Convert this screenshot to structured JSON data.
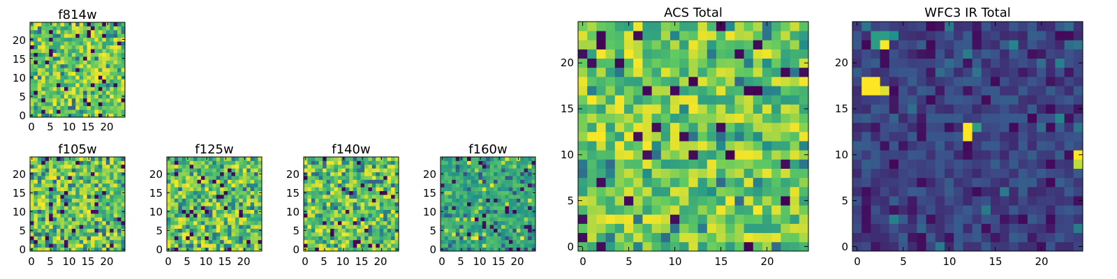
{
  "colormap": [
    "#440154",
    "#3b528b",
    "#21918c",
    "#5ec962",
    "#fde725"
  ],
  "chart_data": [
    {
      "type": "heatmap",
      "title": "f814w",
      "grid": [
        25,
        25
      ],
      "xticks": [
        "0",
        "5",
        "10",
        "15",
        "20"
      ],
      "yticks": [
        "0",
        "5",
        "10",
        "15",
        "20"
      ],
      "xlim": [
        -0.5,
        24.5
      ],
      "ylim": [
        -0.5,
        24.5
      ],
      "value_profile": "f814w",
      "seed": 11
    },
    {
      "type": "heatmap",
      "title": "f105w",
      "grid": [
        25,
        25
      ],
      "xticks": [
        "0",
        "5",
        "10",
        "15",
        "20"
      ],
      "yticks": [
        "0",
        "5",
        "10",
        "15",
        "20"
      ],
      "xlim": [
        -0.5,
        24.5
      ],
      "ylim": [
        -0.5,
        24.5
      ],
      "value_profile": "high",
      "seed": 23
    },
    {
      "type": "heatmap",
      "title": "f125w",
      "grid": [
        25,
        25
      ],
      "xticks": [
        "0",
        "5",
        "10",
        "15",
        "20"
      ],
      "yticks": [
        "0",
        "5",
        "10",
        "15",
        "20"
      ],
      "xlim": [
        -0.5,
        24.5
      ],
      "ylim": [
        -0.5,
        24.5
      ],
      "value_profile": "high",
      "seed": 37
    },
    {
      "type": "heatmap",
      "title": "f140w",
      "grid": [
        25,
        25
      ],
      "xticks": [
        "0",
        "5",
        "10",
        "15",
        "20"
      ],
      "yticks": [
        "0",
        "5",
        "10",
        "15",
        "20"
      ],
      "xlim": [
        -0.5,
        24.5
      ],
      "ylim": [
        -0.5,
        24.5
      ],
      "value_profile": "high",
      "seed": 41
    },
    {
      "type": "heatmap",
      "title": "f160w",
      "grid": [
        25,
        25
      ],
      "xticks": [
        "0",
        "5",
        "10",
        "15",
        "20"
      ],
      "yticks": [
        "0",
        "5",
        "10",
        "15",
        "20"
      ],
      "xlim": [
        -0.5,
        24.5
      ],
      "ylim": [
        -0.5,
        24.5
      ],
      "value_profile": "mid",
      "seed": 53
    },
    {
      "type": "heatmap",
      "title": "ACS Total",
      "grid": [
        25,
        25
      ],
      "xticks": [
        "0",
        "5",
        "10",
        "15",
        "20"
      ],
      "yticks": [
        "0",
        "5",
        "10",
        "15",
        "20"
      ],
      "xlim": [
        -0.5,
        24.5
      ],
      "ylim": [
        -0.5,
        24.5
      ],
      "value_profile": "acs",
      "seed": 67
    },
    {
      "type": "heatmap",
      "title": "WFC3 IR Total",
      "grid": [
        25,
        25
      ],
      "xticks": [
        "0",
        "5",
        "10",
        "15",
        "20"
      ],
      "yticks": [
        "0",
        "5",
        "10",
        "15",
        "20"
      ],
      "xlim": [
        -0.5,
        24.5
      ],
      "ylim": [
        -0.5,
        24.5
      ],
      "value_profile": "low",
      "hotspots": [
        {
          "x": 1,
          "y": 18,
          "v": 1.0
        },
        {
          "x": 2,
          "y": 18,
          "v": 1.0
        },
        {
          "x": 1,
          "y": 17,
          "v": 1.0
        },
        {
          "x": 2,
          "y": 17,
          "v": 1.0
        },
        {
          "x": 3,
          "y": 17,
          "v": 0.95
        },
        {
          "x": 3,
          "y": 22,
          "v": 1.0
        },
        {
          "x": 2,
          "y": 23,
          "v": 0.55
        },
        {
          "x": 3,
          "y": 23,
          "v": 0.55
        },
        {
          "x": 2,
          "y": 22,
          "v": 0.55
        },
        {
          "x": 4,
          "y": 23,
          "v": 0.5
        },
        {
          "x": 12,
          "y": 13,
          "v": 1.0
        },
        {
          "x": 12,
          "y": 12,
          "v": 1.0
        },
        {
          "x": 13,
          "y": 13,
          "v": 0.55
        },
        {
          "x": 24,
          "y": 10,
          "v": 1.0
        },
        {
          "x": 24,
          "y": 9,
          "v": 0.9
        }
      ],
      "seed": 79
    }
  ]
}
